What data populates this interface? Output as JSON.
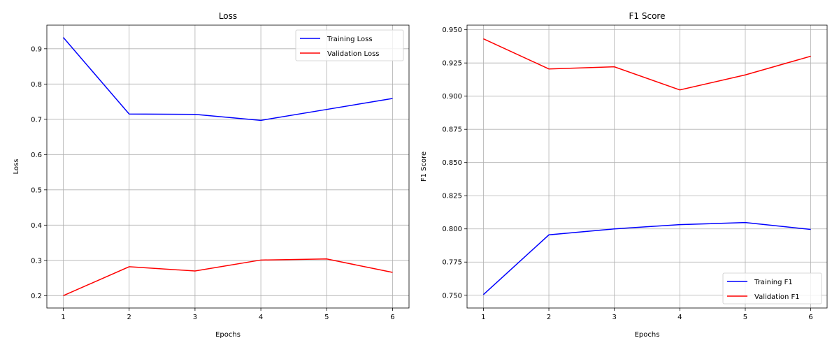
{
  "chart_data": [
    {
      "type": "line",
      "title": "Loss",
      "xlabel": "Epochs",
      "ylabel": "Loss",
      "x": [
        1,
        2,
        3,
        4,
        5,
        6
      ],
      "xticks": [
        "1",
        "2",
        "3",
        "4",
        "5",
        "6"
      ],
      "xlim": [
        0.75,
        6.25
      ],
      "ylim": [
        0.165,
        0.967
      ],
      "yticks": [
        "0.2",
        "0.3",
        "0.4",
        "0.5",
        "0.6",
        "0.7",
        "0.8",
        "0.9"
      ],
      "ytick_values": [
        0.2,
        0.3,
        0.4,
        0.5,
        0.6,
        0.7,
        0.8,
        0.9
      ],
      "grid": true,
      "legend_position": "top-right",
      "series": [
        {
          "name": "Training Loss",
          "color": "#0000ff",
          "values": [
            0.932,
            0.715,
            0.714,
            0.697,
            0.728,
            0.759
          ]
        },
        {
          "name": "Validation Loss",
          "color": "#ff0000",
          "values": [
            0.2,
            0.282,
            0.27,
            0.301,
            0.304,
            0.266
          ]
        }
      ]
    },
    {
      "type": "line",
      "title": "F1 Score",
      "xlabel": "Epochs",
      "ylabel": "F1 Score",
      "x": [
        1,
        2,
        3,
        4,
        5,
        6
      ],
      "xticks": [
        "1",
        "2",
        "3",
        "4",
        "5",
        "6"
      ],
      "xlim": [
        0.75,
        6.25
      ],
      "ylim": [
        0.7404,
        0.9535
      ],
      "yticks": [
        "0.750",
        "0.775",
        "0.800",
        "0.825",
        "0.850",
        "0.875",
        "0.900",
        "0.925",
        "0.950"
      ],
      "ytick_values": [
        0.75,
        0.775,
        0.8,
        0.825,
        0.85,
        0.875,
        0.9,
        0.925,
        0.95
      ],
      "grid": true,
      "legend_position": "bottom-right",
      "series": [
        {
          "name": "Training F1",
          "color": "#0000ff",
          "values": [
            0.7505,
            0.7955,
            0.8,
            0.8032,
            0.8048,
            0.7996
          ]
        },
        {
          "name": "Validation F1",
          "color": "#ff0000",
          "values": [
            0.9432,
            0.9205,
            0.9221,
            0.9047,
            0.916,
            0.9301
          ]
        }
      ]
    }
  ]
}
